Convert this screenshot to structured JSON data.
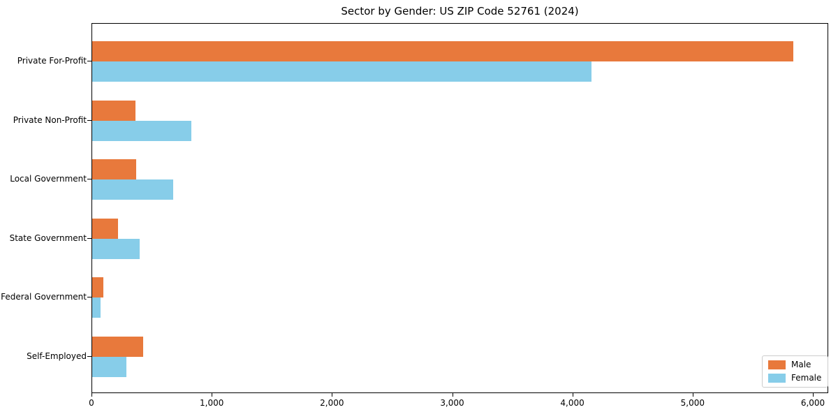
{
  "chart_data": {
    "type": "bar",
    "orientation": "horizontal",
    "title": "Sector by Gender: US ZIP Code 52761 (2024)",
    "categories": [
      "Private For-Profit",
      "Private Non-Profit",
      "Local Government",
      "State Government",
      "Federal Government",
      "Self-Employed"
    ],
    "series": [
      {
        "name": "Male",
        "color": "#e8793c",
        "values": [
          5830,
          360,
          365,
          215,
          90,
          425
        ]
      },
      {
        "name": "Female",
        "color": "#87cde9",
        "values": [
          4150,
          825,
          675,
          395,
          70,
          285
        ]
      }
    ],
    "xlabel": "",
    "ylabel": "",
    "xlim": [
      0,
      6128
    ],
    "xticks": [
      0,
      1000,
      2000,
      3000,
      4000,
      5000,
      6000
    ],
    "xtick_labels": [
      "0",
      "1,000",
      "2,000",
      "3,000",
      "4,000",
      "5,000",
      "6,000"
    ],
    "grid": false,
    "legend": {
      "position": "lower right",
      "labels": [
        "Male",
        "Female"
      ]
    }
  },
  "colors": {
    "male": "#e8793c",
    "female": "#87cde9",
    "frame": "#000000",
    "legend_border": "#cccccc",
    "background": "#ffffff",
    "text": "#000000"
  }
}
